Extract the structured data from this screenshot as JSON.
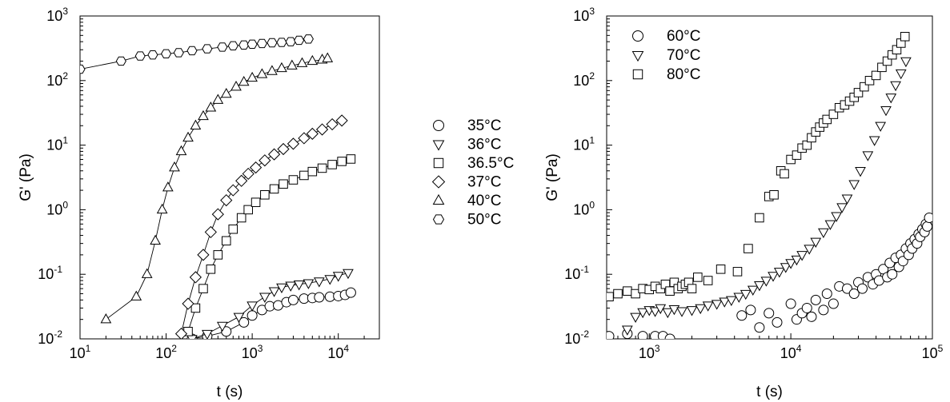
{
  "chart_data": [
    {
      "type": "scatter",
      "xlabel": "t (s)",
      "ylabel": "G' (Pa)",
      "xscale": "log",
      "yscale": "log",
      "xlim": [
        10,
        30000
      ],
      "ylim": [
        0.01,
        1000
      ],
      "x_ticks": [
        {
          "v": 10,
          "b": "10",
          "e": "1"
        },
        {
          "v": 100,
          "b": "10",
          "e": "2"
        },
        {
          "v": 1000,
          "b": "10",
          "e": "3"
        },
        {
          "v": 10000,
          "b": "10",
          "e": "4"
        }
      ],
      "y_ticks": [
        {
          "v": 0.01,
          "b": "10",
          "e": "-2"
        },
        {
          "v": 0.1,
          "b": "10",
          "e": "-1"
        },
        {
          "v": 1,
          "b": "10",
          "e": "0"
        },
        {
          "v": 10,
          "b": "10",
          "e": "1"
        },
        {
          "v": 100,
          "b": "10",
          "e": "2"
        },
        {
          "v": 1000,
          "b": "10",
          "e": "3"
        }
      ],
      "grid": false,
      "legend_placement": "outside-right",
      "series": [
        {
          "name": "35°C",
          "marker": "circle",
          "line": true,
          "x": [
            200,
            300,
            500,
            800,
            1000,
            1300,
            1600,
            2000,
            2500,
            3000,
            4000,
            5000,
            6000,
            8000,
            10000,
            12000,
            14000
          ],
          "y": [
            0.01,
            0.011,
            0.013,
            0.018,
            0.023,
            0.028,
            0.032,
            0.033,
            0.037,
            0.04,
            0.042,
            0.043,
            0.044,
            0.045,
            0.046,
            0.048,
            0.052
          ]
        },
        {
          "name": "36°C",
          "marker": "triangle-down",
          "line": true,
          "x": [
            200,
            300,
            450,
            700,
            1000,
            1400,
            1800,
            2200,
            2800,
            3500,
            4500,
            6000,
            8000,
            10000,
            13000
          ],
          "y": [
            0.01,
            0.012,
            0.016,
            0.022,
            0.033,
            0.045,
            0.055,
            0.063,
            0.067,
            0.07,
            0.073,
            0.078,
            0.085,
            0.095,
            0.105
          ]
        },
        {
          "name": "36.5°C",
          "marker": "square",
          "line": true,
          "x": [
            180,
            220,
            270,
            330,
            400,
            500,
            600,
            750,
            900,
            1100,
            1400,
            1800,
            2300,
            3000,
            4000,
            5000,
            6500,
            8500,
            11000,
            14000
          ],
          "y": [
            0.013,
            0.03,
            0.06,
            0.12,
            0.2,
            0.33,
            0.5,
            0.75,
            1.0,
            1.3,
            1.7,
            2.1,
            2.5,
            2.9,
            3.4,
            3.9,
            4.4,
            5.0,
            5.6,
            6.1
          ]
        },
        {
          "name": "37°C",
          "marker": "diamond",
          "line": true,
          "x": [
            150,
            180,
            220,
            270,
            330,
            400,
            500,
            600,
            750,
            900,
            1100,
            1400,
            1800,
            2300,
            3000,
            4000,
            5000,
            6500,
            8500,
            11000
          ],
          "y": [
            0.012,
            0.035,
            0.09,
            0.2,
            0.45,
            0.85,
            1.4,
            2.0,
            2.8,
            3.6,
            4.5,
            5.8,
            7.2,
            8.7,
            10.5,
            12.8,
            15.0,
            17.5,
            21.0,
            24.0
          ]
        },
        {
          "name": "40°C",
          "marker": "triangle-up",
          "line": true,
          "x": [
            20,
            45,
            60,
            75,
            90,
            105,
            125,
            150,
            180,
            220,
            270,
            330,
            400,
            500,
            650,
            800,
            1000,
            1300,
            1700,
            2200,
            2900,
            3800,
            5000,
            6500,
            7500
          ],
          "y": [
            0.02,
            0.045,
            0.1,
            0.33,
            1.0,
            2.2,
            4.5,
            8.0,
            13.0,
            20.0,
            28.0,
            38.0,
            50.0,
            62.0,
            80.0,
            95.0,
            110.0,
            125.0,
            140.0,
            155.0,
            170.0,
            185.0,
            200.0,
            210.0,
            220.0
          ]
        },
        {
          "name": "50°C",
          "marker": "hexagon",
          "line": true,
          "x": [
            10,
            30,
            50,
            70,
            100,
            140,
            200,
            300,
            450,
            600,
            800,
            1000,
            1300,
            1700,
            2200,
            2800,
            3500,
            4500
          ],
          "y": [
            150.0,
            200.0,
            240.0,
            250.0,
            260.0,
            270.0,
            290.0,
            310.0,
            330.0,
            345.0,
            355.0,
            365.0,
            375.0,
            385.0,
            390.0,
            400.0,
            420.0,
            440.0
          ]
        }
      ]
    },
    {
      "type": "scatter",
      "xlabel": "t (s)",
      "ylabel": "G' (Pa)",
      "xscale": "log",
      "yscale": "log",
      "xlim": [
        500,
        100000
      ],
      "ylim": [
        0.01,
        1000
      ],
      "x_ticks": [
        {
          "v": 1000,
          "b": "10",
          "e": "3"
        },
        {
          "v": 10000,
          "b": "10",
          "e": "4"
        },
        {
          "v": 100000,
          "b": "10",
          "e": "5"
        }
      ],
      "y_ticks": [
        {
          "v": 0.01,
          "b": "10",
          "e": "-2"
        },
        {
          "v": 0.1,
          "b": "10",
          "e": "-1"
        },
        {
          "v": 1,
          "b": "10",
          "e": "0"
        },
        {
          "v": 10,
          "b": "10",
          "e": "1"
        },
        {
          "v": 100,
          "b": "10",
          "e": "2"
        },
        {
          "v": 1000,
          "b": "10",
          "e": "3"
        }
      ],
      "grid": false,
      "legend_placement": "top-left",
      "series": [
        {
          "name": "60°C",
          "marker": "circle",
          "line": false,
          "x": [
            520,
            700,
            900,
            1100,
            1250,
            1400,
            4500,
            5200,
            6000,
            7000,
            8000,
            10000,
            11000,
            12000,
            13000,
            14000,
            15000,
            17000,
            18000,
            20000,
            22000,
            25000,
            28000,
            30000,
            32000,
            35000,
            38000,
            40000,
            42000,
            45000,
            48000,
            50000,
            52000,
            55000,
            58000,
            60000,
            62000,
            65000,
            68000,
            70000,
            72000,
            75000,
            78000,
            80000,
            82000,
            85000,
            88000,
            90000,
            92000,
            95000
          ],
          "y": [
            0.011,
            0.012,
            0.011,
            0.011,
            0.011,
            0.01,
            0.023,
            0.028,
            0.015,
            0.025,
            0.018,
            0.035,
            0.02,
            0.025,
            0.03,
            0.022,
            0.04,
            0.028,
            0.05,
            0.035,
            0.065,
            0.06,
            0.05,
            0.075,
            0.06,
            0.09,
            0.07,
            0.1,
            0.08,
            0.12,
            0.09,
            0.15,
            0.1,
            0.18,
            0.13,
            0.2,
            0.16,
            0.25,
            0.2,
            0.3,
            0.25,
            0.35,
            0.3,
            0.42,
            0.38,
            0.5,
            0.45,
            0.6,
            0.55,
            0.75
          ]
        },
        {
          "name": "70°C",
          "marker": "triangle-down",
          "line": false,
          "x": [
            700,
            800,
            900,
            1000,
            1100,
            1200,
            1350,
            1500,
            1700,
            2000,
            2300,
            2600,
            3000,
            3400,
            3800,
            4300,
            4800,
            5400,
            6000,
            6700,
            7500,
            8300,
            9200,
            10000,
            11000,
            12000,
            13500,
            15000,
            17000,
            19000,
            21000,
            23000,
            25000,
            28000,
            31000,
            35000,
            39000,
            43000,
            47000,
            51000,
            55000,
            60000,
            65000
          ],
          "y": [
            0.014,
            0.022,
            0.026,
            0.028,
            0.027,
            0.03,
            0.026,
            0.029,
            0.027,
            0.028,
            0.03,
            0.033,
            0.035,
            0.038,
            0.04,
            0.045,
            0.05,
            0.058,
            0.068,
            0.08,
            0.095,
            0.11,
            0.13,
            0.15,
            0.17,
            0.2,
            0.25,
            0.32,
            0.45,
            0.6,
            0.8,
            1.1,
            1.5,
            2.5,
            4.0,
            7.0,
            12.0,
            20.0,
            35.0,
            55.0,
            85.0,
            130.0,
            200.0
          ]
        },
        {
          "name": "80°C",
          "marker": "square",
          "line": false,
          "x": [
            520,
            600,
            700,
            800,
            900,
            1000,
            1100,
            1200,
            1300,
            1400,
            1500,
            1600,
            1700,
            1800,
            1900,
            2000,
            2200,
            2600,
            3200,
            4200,
            5000,
            6000,
            7000,
            7600,
            8500,
            9000,
            10000,
            11000,
            12000,
            13000,
            14000,
            15000,
            16000,
            17000,
            18000,
            20000,
            22000,
            24000,
            26000,
            28000,
            30000,
            33000,
            36000,
            40000,
            44000,
            48000,
            52000,
            56000,
            60000,
            64000
          ],
          "y": [
            0.045,
            0.05,
            0.055,
            0.05,
            0.06,
            0.058,
            0.065,
            0.06,
            0.07,
            0.055,
            0.075,
            0.06,
            0.065,
            0.07,
            0.075,
            0.06,
            0.09,
            0.08,
            0.12,
            0.11,
            0.25,
            0.75,
            1.6,
            1.7,
            4.0,
            3.6,
            6.0,
            7.0,
            9.0,
            10.0,
            13.0,
            16.0,
            19.0,
            22.0,
            25.0,
            30.0,
            38.0,
            42.0,
            48.0,
            55.0,
            65.0,
            80.0,
            100.0,
            120.0,
            160.0,
            200.0,
            250.0,
            300.0,
            380.0,
            480.0
          ]
        }
      ]
    }
  ]
}
